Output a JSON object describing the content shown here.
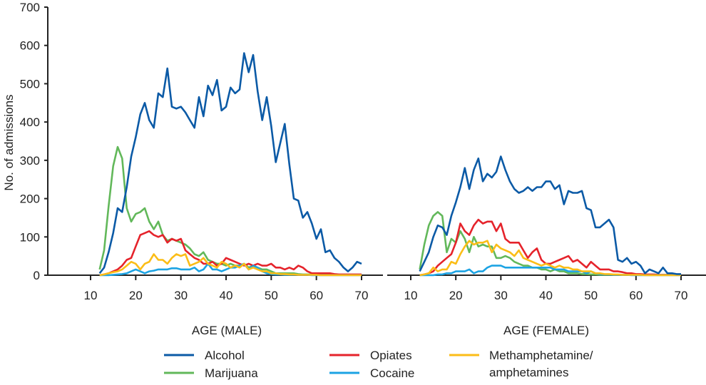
{
  "chart_data": {
    "type": "line",
    "ylabel": "No. of admissions",
    "ylim": [
      0,
      700
    ],
    "yticks": [
      0,
      100,
      200,
      300,
      400,
      500,
      600,
      700
    ],
    "xlim": [
      10,
      70
    ],
    "xticks": [
      10,
      20,
      30,
      40,
      50,
      60,
      70
    ],
    "x_start": 12,
    "legend_position": "bottom",
    "grid": false,
    "series_meta": [
      {
        "name": "Alcohol",
        "color": "#0b5aa6"
      },
      {
        "name": "Marijuana",
        "color": "#62b85a"
      },
      {
        "name": "Opiates",
        "color": "#e5232b"
      },
      {
        "name": "Cocaine",
        "color": "#1ca3e3"
      },
      {
        "name": "Methamphetamine/ amphetamines",
        "name_lines": [
          "Methamphetamine/",
          "amphetamines"
        ],
        "color": "#fbbd17"
      }
    ],
    "panels": [
      {
        "xlabel": "AGE (MALE)",
        "series": [
          {
            "name": "Alcohol",
            "values": [
              5,
              20,
              60,
              110,
              175,
              165,
              230,
              310,
              360,
              420,
              450,
              405,
              385,
              475,
              465,
              540,
              440,
              435,
              440,
              425,
              405,
              385,
              465,
              415,
              495,
              470,
              510,
              430,
              440,
              490,
              475,
              485,
              580,
              530,
              575,
              480,
              405,
              465,
              390,
              295,
              345,
              395,
              290,
              200,
              195,
              150,
              165,
              135,
              95,
              120,
              60,
              65,
              45,
              35,
              20,
              10,
              20,
              35,
              30
            ]
          },
          {
            "name": "Marijuana",
            "values": [
              15,
              65,
              180,
              285,
              335,
              305,
              175,
              140,
              160,
              165,
              175,
              140,
              120,
              140,
              105,
              90,
              95,
              90,
              85,
              80,
              70,
              55,
              50,
              60,
              40,
              35,
              30,
              30,
              25,
              30,
              25,
              25,
              30,
              20,
              25,
              20,
              15,
              15,
              10,
              5,
              5,
              5,
              5,
              5,
              3,
              2,
              2,
              2,
              1,
              1,
              1,
              1,
              1,
              1,
              1,
              1,
              1,
              1,
              1
            ]
          },
          {
            "name": "Opiates",
            "values": [
              0,
              2,
              5,
              10,
              15,
              25,
              40,
              45,
              75,
              105,
              110,
              115,
              105,
              100,
              105,
              85,
              95,
              90,
              95,
              65,
              55,
              45,
              40,
              30,
              30,
              35,
              25,
              30,
              45,
              40,
              35,
              30,
              25,
              30,
              25,
              30,
              25,
              25,
              30,
              20,
              20,
              15,
              20,
              15,
              25,
              20,
              10,
              5,
              5,
              5,
              5,
              5,
              3,
              2,
              2,
              2,
              2,
              2,
              2
            ]
          },
          {
            "name": "Cocaine",
            "values": [
              0,
              0,
              0,
              1,
              2,
              3,
              5,
              10,
              15,
              10,
              5,
              10,
              12,
              15,
              15,
              15,
              18,
              18,
              15,
              15,
              15,
              20,
              10,
              15,
              30,
              15,
              15,
              10,
              15,
              20,
              20,
              25,
              30,
              15,
              25,
              20,
              10,
              5,
              3,
              2,
              2,
              1,
              1,
              1,
              1,
              1,
              1,
              0,
              0,
              0,
              0,
              0,
              0,
              0,
              0,
              0,
              0,
              0,
              0
            ]
          },
          {
            "name": "Methamphetamine/ amphetamines",
            "values": [
              0,
              2,
              5,
              8,
              10,
              15,
              25,
              35,
              30,
              15,
              30,
              35,
              55,
              40,
              40,
              30,
              45,
              55,
              50,
              55,
              25,
              30,
              35,
              45,
              30,
              25,
              20,
              35,
              30,
              20,
              25,
              20,
              30,
              15,
              20,
              15,
              10,
              10,
              5,
              5,
              3,
              3,
              2,
              2,
              1,
              1,
              1,
              1,
              1,
              0,
              0,
              0,
              0,
              0,
              0,
              0,
              0,
              0,
              0
            ]
          }
        ]
      },
      {
        "xlabel": "AGE (FEMALE)",
        "series": [
          {
            "name": "Alcohol",
            "values": [
              10,
              35,
              60,
              100,
              130,
              125,
              105,
              155,
              190,
              230,
              280,
              225,
              275,
              305,
              245,
              265,
              255,
              270,
              310,
              275,
              245,
              225,
              215,
              220,
              230,
              220,
              230,
              230,
              245,
              245,
              225,
              235,
              185,
              220,
              215,
              215,
              220,
              175,
              170,
              125,
              125,
              135,
              145,
              125,
              40,
              35,
              45,
              30,
              35,
              25,
              5,
              15,
              10,
              5,
              20,
              5,
              5,
              3,
              3
            ]
          },
          {
            "name": "Marijuana",
            "values": [
              15,
              80,
              130,
              155,
              165,
              155,
              60,
              95,
              85,
              115,
              95,
              60,
              100,
              75,
              80,
              75,
              75,
              45,
              45,
              50,
              45,
              35,
              30,
              25,
              25,
              20,
              20,
              15,
              15,
              10,
              15,
              10,
              10,
              5,
              5,
              5,
              3,
              3,
              2,
              2,
              1,
              1,
              1,
              1,
              1,
              1,
              1,
              1,
              1,
              1,
              1,
              1,
              1,
              1,
              1,
              1,
              1,
              1,
              1
            ]
          },
          {
            "name": "Opiates",
            "values": [
              0,
              2,
              5,
              10,
              25,
              35,
              45,
              55,
              85,
              135,
              115,
              105,
              130,
              145,
              135,
              140,
              140,
              115,
              135,
              95,
              85,
              85,
              85,
              65,
              45,
              60,
              70,
              40,
              30,
              30,
              35,
              40,
              45,
              50,
              35,
              40,
              30,
              20,
              35,
              25,
              15,
              15,
              15,
              10,
              10,
              8,
              5,
              5,
              3,
              3,
              2,
              2,
              2,
              1,
              1,
              1,
              1,
              1,
              1
            ]
          },
          {
            "name": "Cocaine",
            "values": [
              0,
              0,
              0,
              0,
              2,
              2,
              5,
              5,
              10,
              10,
              10,
              15,
              5,
              10,
              10,
              20,
              25,
              25,
              25,
              20,
              20,
              20,
              20,
              20,
              20,
              20,
              20,
              20,
              20,
              20,
              15,
              15,
              15,
              10,
              10,
              10,
              10,
              5,
              10,
              5,
              3,
              2,
              2,
              1,
              1,
              1,
              1,
              0,
              0,
              0,
              0,
              0,
              0,
              0,
              0,
              0,
              0,
              0,
              0
            ]
          },
          {
            "name": "Methamphetamine/ amphetamines",
            "values": [
              0,
              2,
              5,
              20,
              10,
              15,
              15,
              35,
              30,
              55,
              75,
              90,
              80,
              85,
              85,
              90,
              60,
              80,
              70,
              65,
              60,
              50,
              65,
              45,
              40,
              35,
              30,
              25,
              30,
              25,
              20,
              25,
              20,
              20,
              15,
              15,
              10,
              10,
              10,
              5,
              5,
              3,
              3,
              2,
              2,
              1,
              1,
              1,
              1,
              1,
              0,
              0,
              0,
              0,
              0,
              0,
              0,
              0,
              0
            ]
          }
        ]
      }
    ]
  }
}
